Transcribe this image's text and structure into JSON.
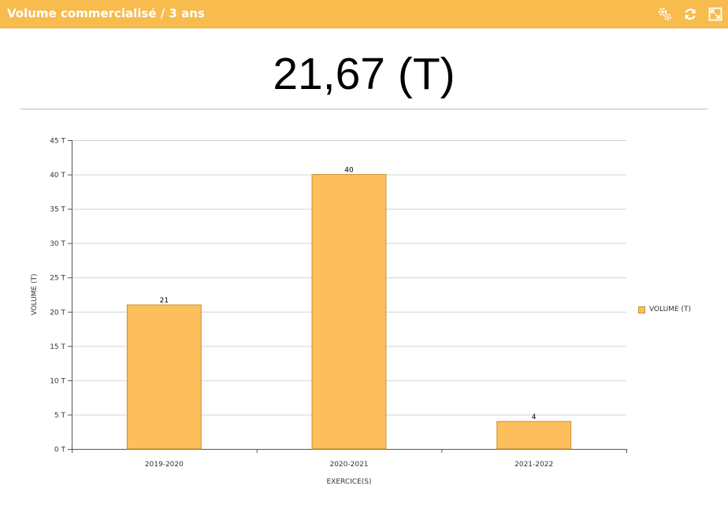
{
  "header": {
    "title": "Volume commercialisé / 3 ans",
    "background": "#f7bb4e",
    "icons": [
      "settings-icon",
      "refresh-icon",
      "expand-icon"
    ]
  },
  "kpi": {
    "value": "21,67 (T)"
  },
  "chart_data": {
    "type": "bar",
    "title": "",
    "xlabel": "EXERCICE(S)",
    "ylabel": "VOLUME (T)",
    "categories": [
      "2019-2020",
      "2020-2021",
      "2021-2022"
    ],
    "series": [
      {
        "name": "VOLUME (T)",
        "values": [
          21,
          40,
          4
        ],
        "color": "#fdbf5d"
      }
    ],
    "data_labels": [
      "21",
      "40",
      "4"
    ],
    "ylim": [
      0,
      45
    ],
    "yticks": [
      0,
      5,
      10,
      15,
      20,
      25,
      30,
      35,
      40,
      45
    ],
    "ytick_labels": [
      "0 T",
      "5 T",
      "10 T",
      "15 T",
      "20 T",
      "25 T",
      "30 T",
      "35 T",
      "40 T",
      "45 T"
    ],
    "grid": true,
    "legend_position": "right"
  }
}
